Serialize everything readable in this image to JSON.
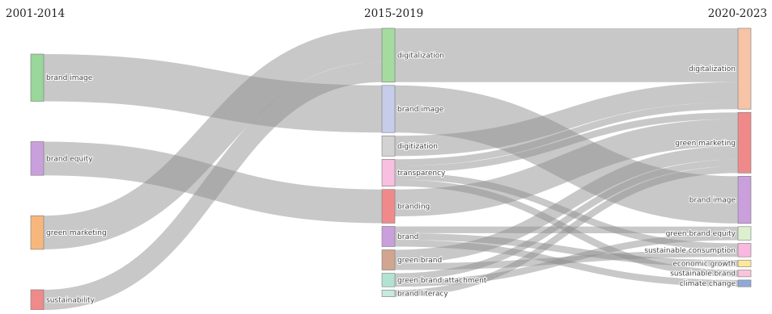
{
  "periods": [
    "2001-2014",
    "2015-2019",
    "2020-2023"
  ],
  "nodes": [
    {
      "id": "p1_brand_image",
      "label": "brand image",
      "period": 0,
      "color": "#98d69a"
    },
    {
      "id": "p1_brand_equity",
      "label": "brand equity",
      "period": 0,
      "color": "#c9a0dc"
    },
    {
      "id": "p1_green_marketing",
      "label": "green marketing",
      "period": 0,
      "color": "#f7b77c"
    },
    {
      "id": "p1_sustainability",
      "label": "sustainability",
      "period": 0,
      "color": "#ef8a8a"
    },
    {
      "id": "p2_digitalization",
      "label": "digitalization",
      "period": 1,
      "color": "#a6dba0"
    },
    {
      "id": "p2_brand_image",
      "label": "brand image",
      "period": 1,
      "color": "#c5cdea"
    },
    {
      "id": "p2_digitization",
      "label": "digitization",
      "period": 1,
      "color": "#d2d2d2"
    },
    {
      "id": "p2_transparency",
      "label": "transparency",
      "period": 1,
      "color": "#f8bfe0"
    },
    {
      "id": "p2_branding",
      "label": "branding",
      "period": 1,
      "color": "#f08a8a"
    },
    {
      "id": "p2_brand",
      "label": "brand",
      "period": 1,
      "color": "#c9a0dc"
    },
    {
      "id": "p2_green_brand",
      "label": "green brand",
      "period": 1,
      "color": "#d1a58f"
    },
    {
      "id": "p2_green_brand_attachment",
      "label": "green brand attachment",
      "period": 1,
      "color": "#b2e2d2"
    },
    {
      "id": "p2_brand_literacy",
      "label": "brand literacy",
      "period": 1,
      "color": "#c7e9de"
    },
    {
      "id": "p3_digitalization",
      "label": "digitalization",
      "period": 2,
      "color": "#f8c4a8"
    },
    {
      "id": "p3_green_marketing",
      "label": "green marketing",
      "period": 2,
      "color": "#f08a8a"
    },
    {
      "id": "p3_brand_image",
      "label": "brand image",
      "period": 2,
      "color": "#c9a0dc"
    },
    {
      "id": "p3_green_brand_equity",
      "label": "green brand equity",
      "period": 2,
      "color": "#dcf0d0"
    },
    {
      "id": "p3_sustainable_consumption",
      "label": "sustainable consumption",
      "period": 2,
      "color": "#f8b8e0"
    },
    {
      "id": "p3_economic_growth",
      "label": "economic growth",
      "period": 2,
      "color": "#fde79c"
    },
    {
      "id": "p3_sustainable_brand",
      "label": "sustainable brand",
      "period": 2,
      "color": "#f8c4dc"
    },
    {
      "id": "p3_climate_change",
      "label": "climate change",
      "period": 2,
      "color": "#90a9d8"
    }
  ],
  "links": [
    {
      "source": "p1_brand_image",
      "target": "p2_brand_image",
      "value": 7
    },
    {
      "source": "p1_brand_equity",
      "target": "p2_branding",
      "value": 5
    },
    {
      "source": "p1_green_marketing",
      "target": "p2_digitalization",
      "value": 5
    },
    {
      "source": "p1_sustainability",
      "target": "p2_digitalization",
      "value": 3
    },
    {
      "source": "p2_digitalization",
      "target": "p3_digitalization",
      "value": 8
    },
    {
      "source": "p2_brand_image",
      "target": "p3_brand_image",
      "value": 7
    },
    {
      "source": "p2_digitization",
      "target": "p3_digitalization",
      "value": 3
    },
    {
      "source": "p2_transparency",
      "target": "p3_digitalization",
      "value": 1
    },
    {
      "source": "p2_transparency",
      "target": "p3_green_marketing",
      "value": 1
    },
    {
      "source": "p2_transparency",
      "target": "p3_sustainable_consumption",
      "value": 1
    },
    {
      "source": "p2_transparency",
      "target": "p3_sustainable_brand",
      "value": 1
    },
    {
      "source": "p2_branding",
      "target": "p3_green_marketing",
      "value": 4
    },
    {
      "source": "p2_brand",
      "target": "p3_green_brand_equity",
      "value": 1
    },
    {
      "source": "p2_brand",
      "target": "p3_economic_growth",
      "value": 1
    },
    {
      "source": "p2_brand",
      "target": "p3_climate_change",
      "value": 1
    },
    {
      "source": "p2_green_brand",
      "target": "p3_green_marketing",
      "value": 2
    },
    {
      "source": "p2_green_brand",
      "target": "p3_sustainable_consumption",
      "value": 1
    },
    {
      "source": "p2_green_brand_attachment",
      "target": "p3_green_marketing",
      "value": 1
    },
    {
      "source": "p2_green_brand_attachment",
      "target": "p3_green_brand_equity",
      "value": 1
    },
    {
      "source": "p2_brand_literacy",
      "target": "p3_green_marketing",
      "value": 1
    }
  ]
}
